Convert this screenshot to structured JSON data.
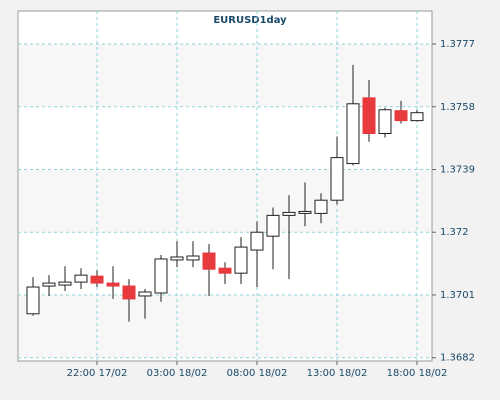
{
  "chart_data": {
    "type": "candlestick",
    "title": "EURUSD1day",
    "categories": [
      null,
      null,
      null,
      null,
      "22:00 17/02",
      null,
      null,
      null,
      null,
      "03:00 18/02",
      null,
      null,
      null,
      null,
      "08:00 18/02",
      null,
      null,
      null,
      null,
      "13:00 18/02",
      null,
      null,
      null,
      null,
      "18:00 18/02"
    ],
    "open": [
      1.36953,
      1.37037,
      1.3704,
      1.37049,
      1.37067,
      1.37046,
      1.37037,
      1.37007,
      1.37016,
      1.37116,
      1.37116,
      1.37137,
      1.37091,
      1.37076,
      1.37146,
      1.37188,
      1.37251,
      1.37257,
      1.37257,
      1.37297,
      1.37408,
      1.37607,
      1.37499,
      1.37568,
      1.37538
    ],
    "high": [
      1.37064,
      1.3707,
      1.37097,
      1.37091,
      1.37085,
      1.37097,
      1.37058,
      1.37028,
      1.37131,
      1.37173,
      1.37173,
      1.37164,
      1.37109,
      1.37185,
      1.37233,
      1.37275,
      1.37312,
      1.37351,
      1.37318,
      1.3749,
      1.37707,
      1.37661,
      1.37577,
      1.37598,
      1.3757
    ],
    "low": [
      1.36947,
      1.37007,
      1.37022,
      1.37028,
      1.37034,
      1.36998,
      1.36929,
      1.36938,
      1.36989,
      1.37094,
      1.37094,
      1.37007,
      1.37043,
      1.37043,
      1.37034,
      1.37088,
      1.37058,
      1.37218,
      1.37227,
      1.37284,
      1.37402,
      1.37474,
      1.37487,
      1.37529,
      1.37535
    ],
    "close": [
      1.37034,
      1.37046,
      1.37049,
      1.3707,
      1.37046,
      1.37037,
      1.36998,
      1.37019,
      1.37119,
      1.37125,
      1.37128,
      1.37088,
      1.37076,
      1.37155,
      1.372,
      1.37251,
      1.3726,
      1.37263,
      1.37297,
      1.37426,
      1.37589,
      1.37499,
      1.37571,
      1.37538,
      1.37562
    ],
    "up_color": "#ffffff",
    "down_color": "#e8393c",
    "ylim": [
      1.3681,
      1.3787
    ],
    "yticks": [
      1.3682,
      1.3701,
      1.372,
      1.3739,
      1.3758,
      1.3777
    ],
    "grid": true
  }
}
